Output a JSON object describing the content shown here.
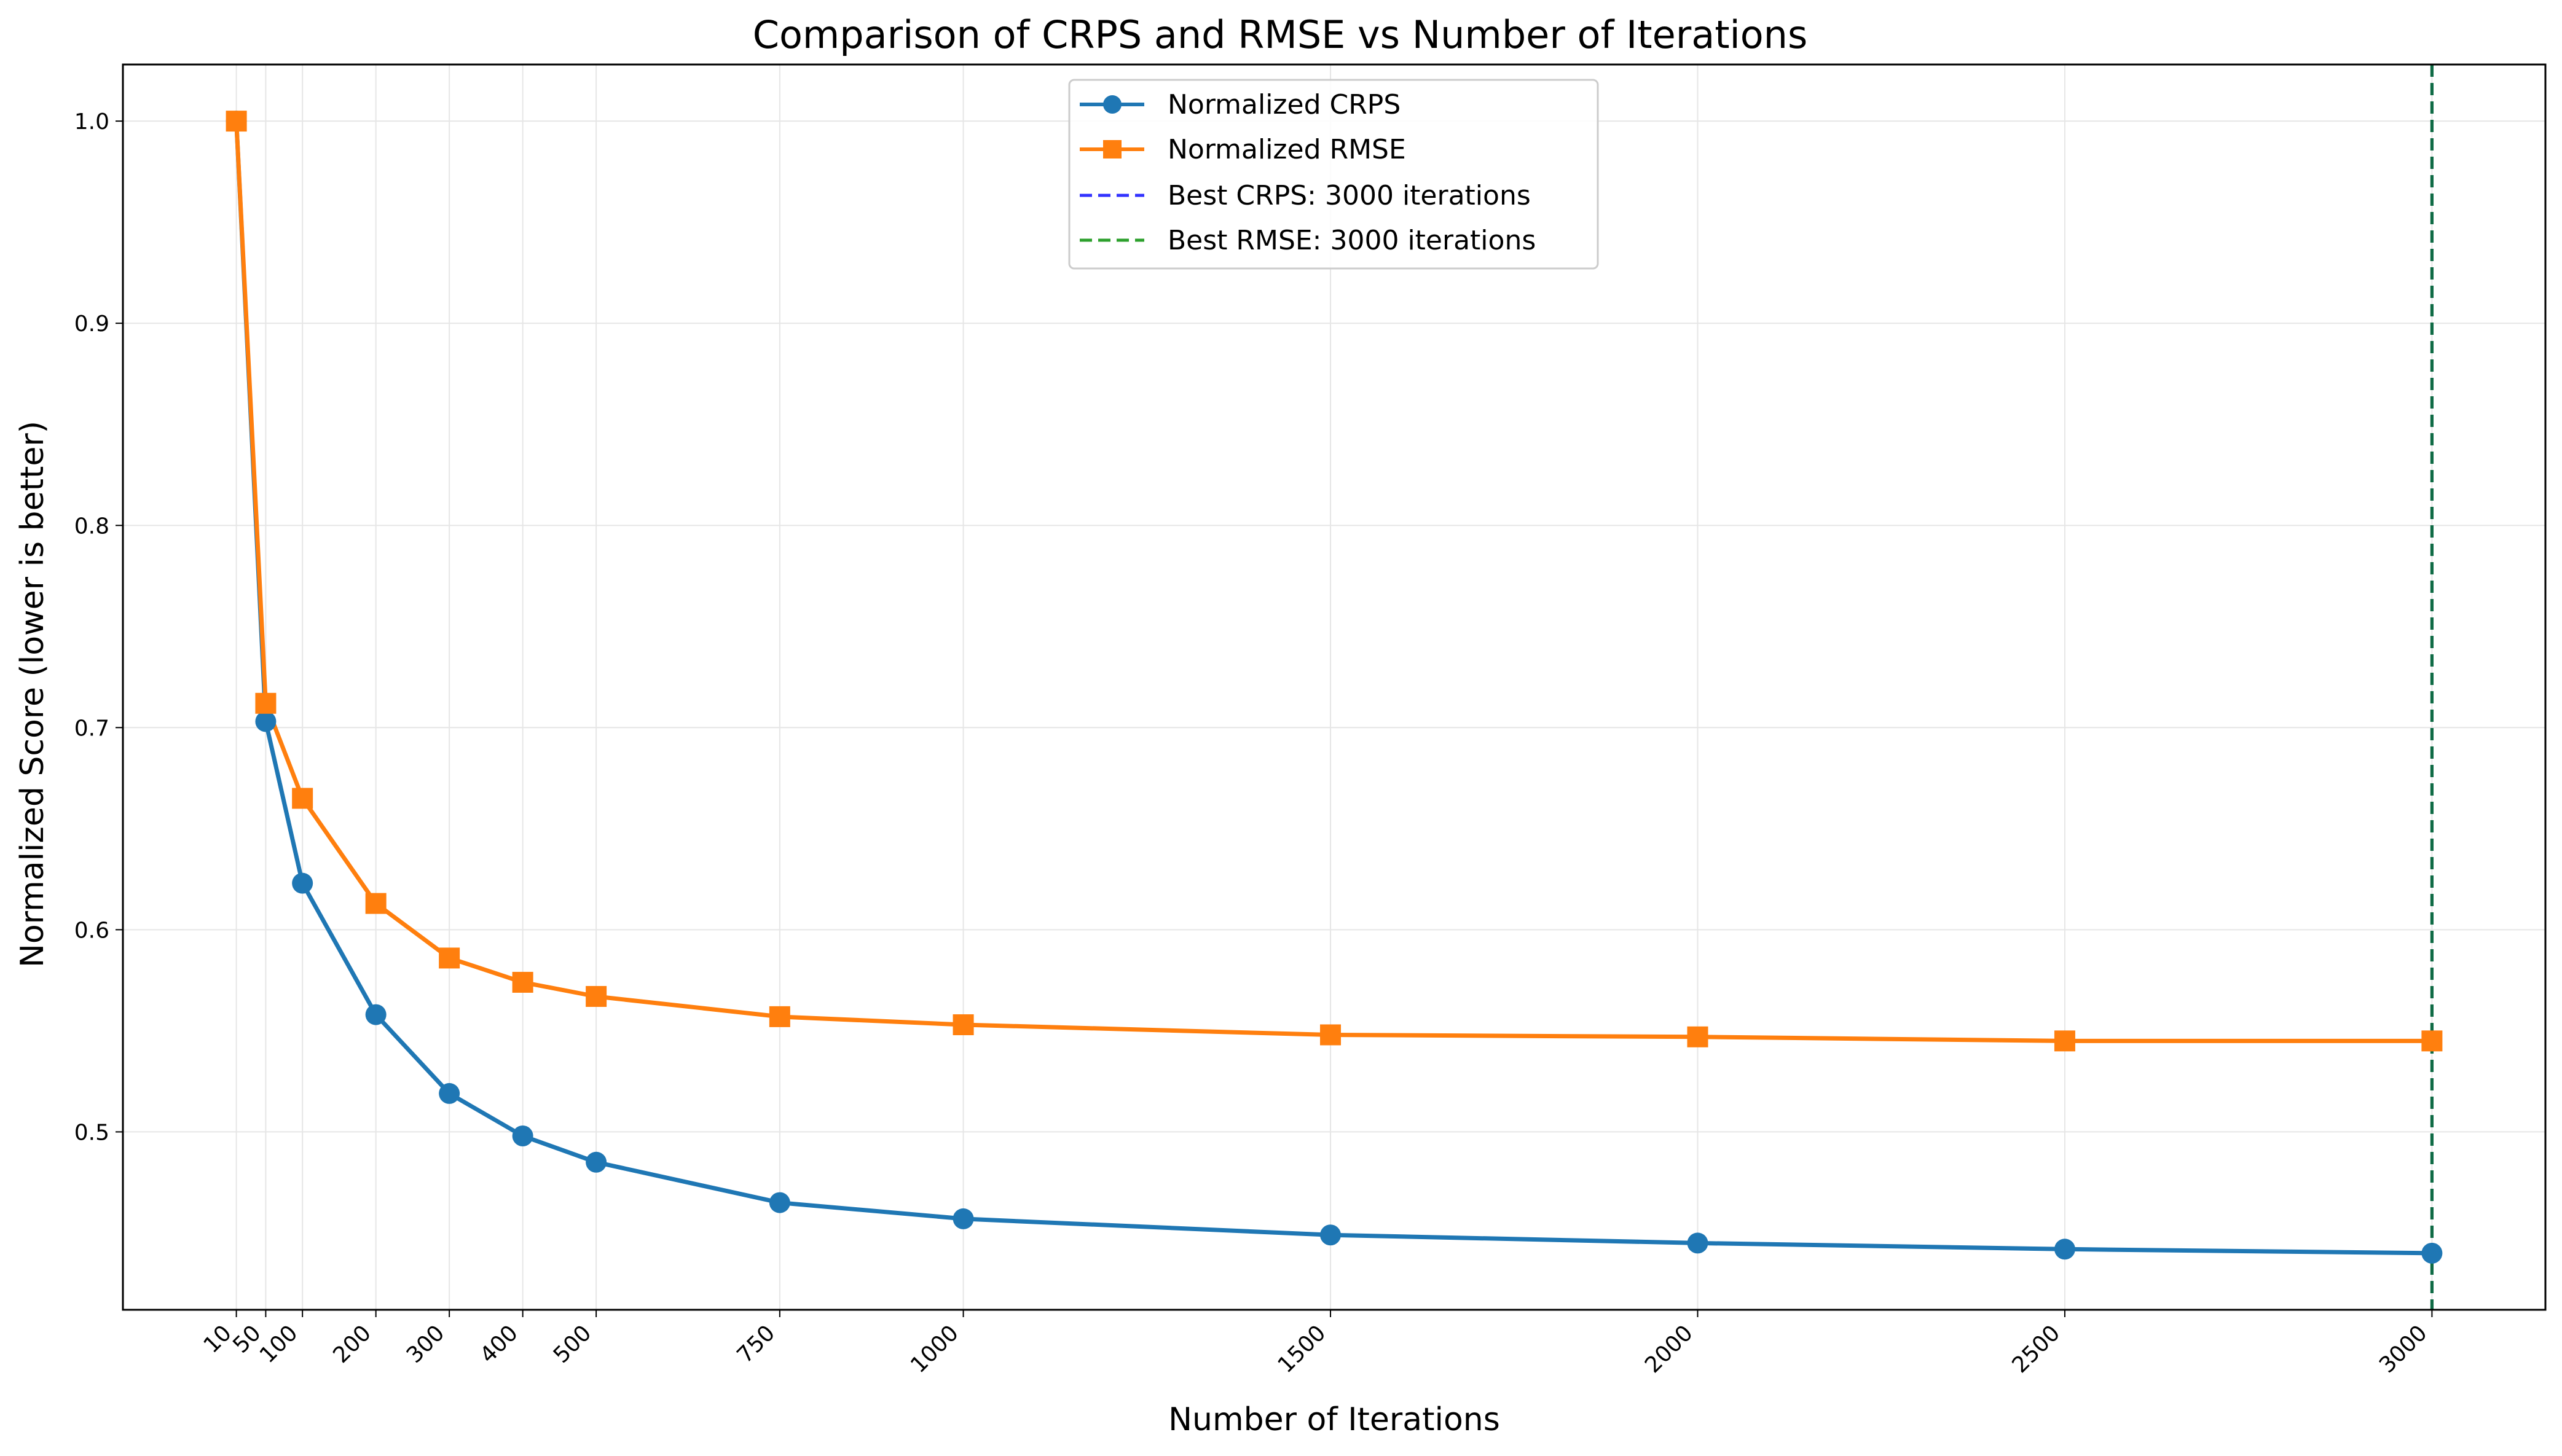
{
  "chart_data": {
    "type": "line",
    "title": "Comparison of CRPS and RMSE vs Number of Iterations",
    "xlabel": "Number of Iterations",
    "ylabel": "Normalized Score (lower is better)",
    "x": [
      10,
      50,
      100,
      200,
      300,
      400,
      500,
      750,
      1000,
      1500,
      2000,
      2500,
      3000
    ],
    "x_tick_labels": [
      "10",
      "50",
      "100",
      "200",
      "300",
      "400",
      "500",
      "750",
      "1000",
      "1500",
      "2000",
      "2500",
      "3000"
    ],
    "xlim": [
      -144.5,
      3154.5
    ],
    "ylim": [
      0.412,
      1.028
    ],
    "y_ticks": [
      0.5,
      0.6,
      0.7,
      0.8,
      0.9,
      1.0
    ],
    "y_tick_labels": [
      "0.5",
      "0.6",
      "0.7",
      "0.8",
      "0.9",
      "1.0"
    ],
    "grid": true,
    "legend_position": "top-center",
    "series": [
      {
        "name": "Normalized CRPS",
        "color": "#1f77b4",
        "marker": "circle",
        "values": [
          1.0,
          0.703,
          0.623,
          0.558,
          0.519,
          0.498,
          0.485,
          0.465,
          0.457,
          0.449,
          0.445,
          0.442,
          0.44
        ]
      },
      {
        "name": "Normalized RMSE",
        "color": "#ff7f0e",
        "marker": "square",
        "values": [
          1.0,
          0.712,
          0.665,
          0.613,
          0.586,
          0.574,
          0.567,
          0.557,
          0.553,
          0.548,
          0.547,
          0.545,
          0.545
        ]
      }
    ],
    "reference_lines": [
      {
        "name": "Best CRPS: 3000 iterations",
        "x": 3000,
        "color": "#3333ff",
        "style": "dashed"
      },
      {
        "name": "Best RMSE: 3000 iterations",
        "x": 3000,
        "color": "#2ca02c",
        "style": "dashed"
      }
    ],
    "overlap_line_color": "#0f6b45"
  }
}
